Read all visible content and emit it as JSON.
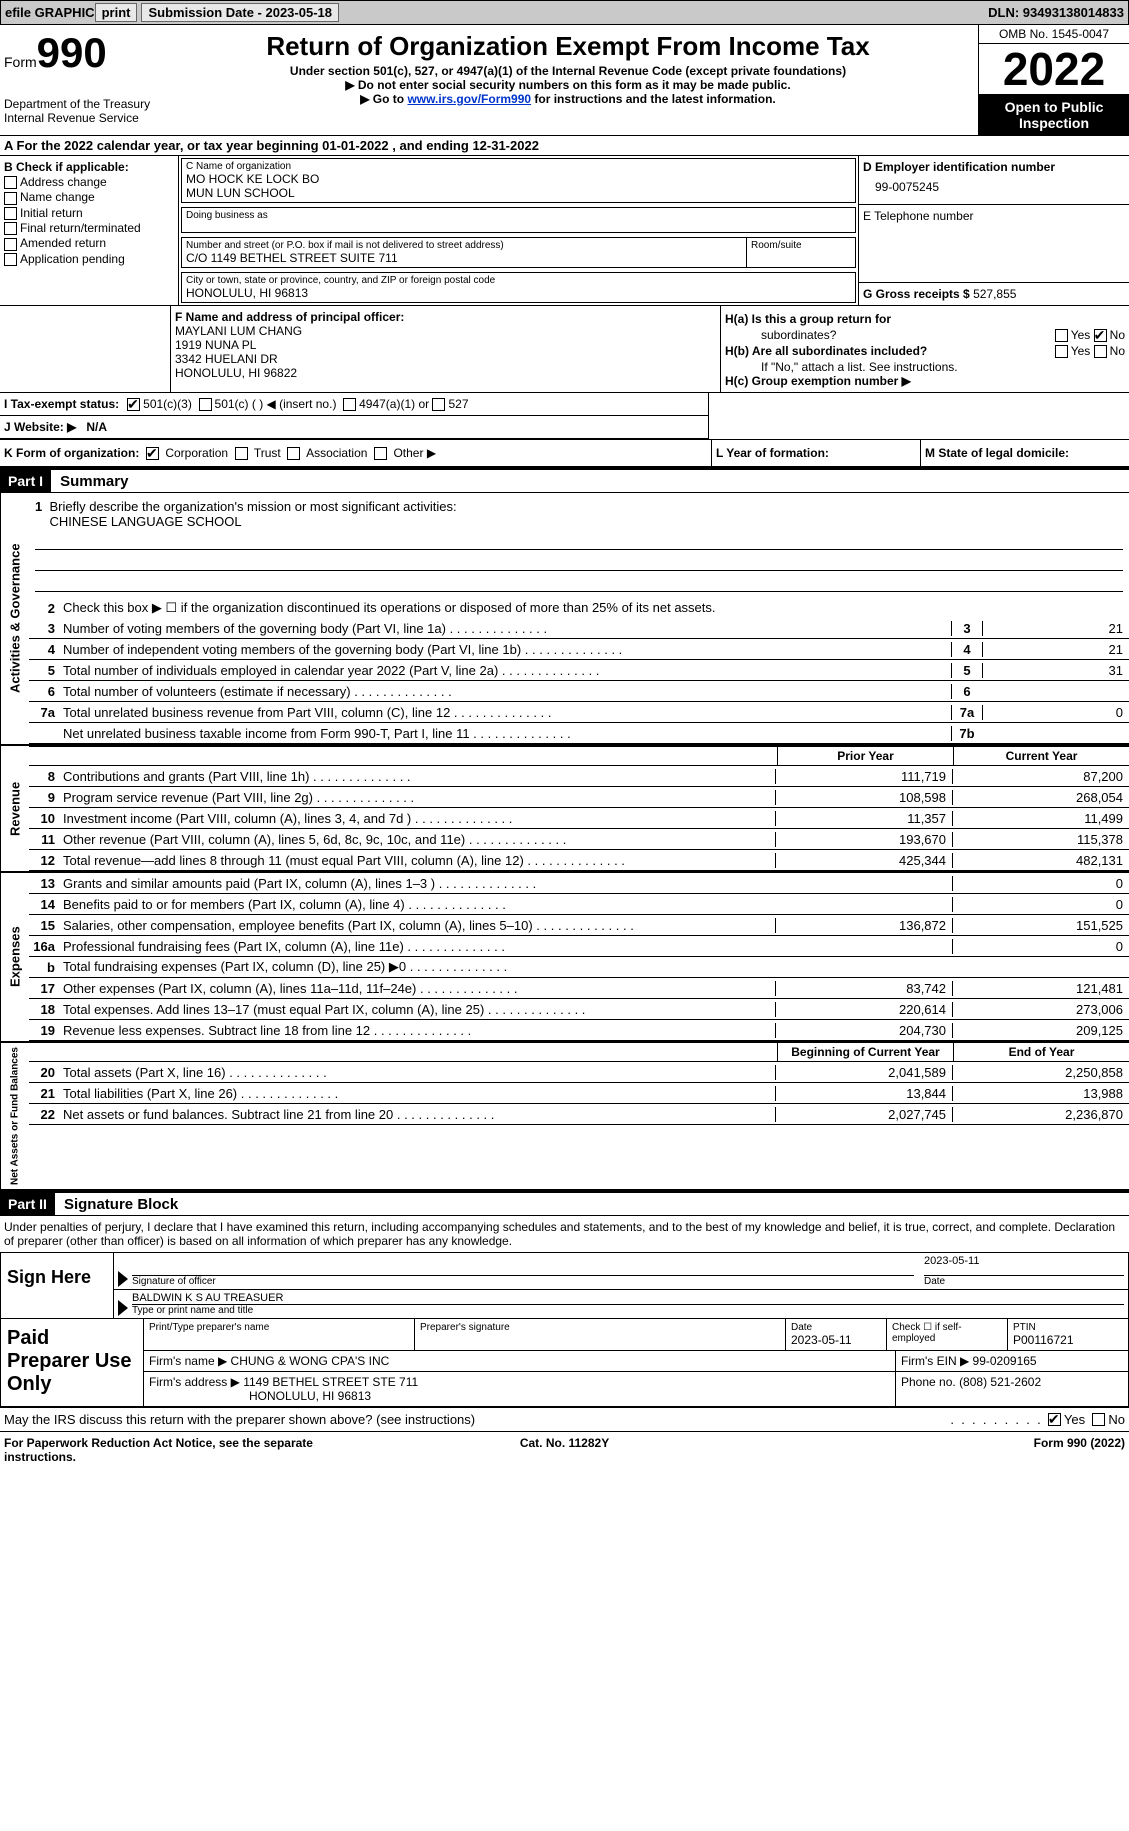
{
  "topbar": {
    "efile": "efile GRAPHIC",
    "print": "print",
    "submission_label": "Submission Date - 2023-05-18",
    "dln_label": "DLN: 93493138014833"
  },
  "header": {
    "form_label": "Form",
    "form_num": "990",
    "title": "Return of Organization Exempt From Income Tax",
    "subtitle": "Under section 501(c), 527, or 4947(a)(1) of the Internal Revenue Code (except private foundations)",
    "note1": "▶ Do not enter social security numbers on this form as it may be made public.",
    "note2_pre": "▶ Go to ",
    "note2_link": "www.irs.gov/Form990",
    "note2_post": " for instructions and the latest information.",
    "dept": "Department of the Treasury Internal Revenue Service",
    "omb": "OMB No. 1545-0047",
    "year": "2022",
    "inspection": "Open to Public Inspection"
  },
  "section_a": {
    "text_pre": "A For the 2022 calendar year, or tax year beginning ",
    "begin": "01-01-2022",
    "mid": " , and ending ",
    "end": "12-31-2022"
  },
  "block_b": {
    "title": "B Check if applicable:",
    "items": [
      "Address change",
      "Name change",
      "Initial return",
      "Final return/terminated",
      "Amended return",
      "Application pending"
    ]
  },
  "block_c": {
    "name_label": "C Name of organization",
    "name1": "MO HOCK KE LOCK BO",
    "name2": "MUN LUN SCHOOL",
    "dba_label": "Doing business as",
    "street_label": "Number and street (or P.O. box if mail is not delivered to street address)",
    "room_label": "Room/suite",
    "street": "C/O 1149 BETHEL STREET SUITE 711",
    "city_label": "City or town, state or province, country, and ZIP or foreign postal code",
    "city": "HONOLULU, HI  96813"
  },
  "block_d": {
    "ein_label": "D Employer identification number",
    "ein": "99-0075245",
    "phone_label": "E Telephone number",
    "gross_label": "G Gross receipts $",
    "gross": "527,855"
  },
  "block_f": {
    "label": "F Name and address of principal officer:",
    "name": "MAYLANI LUM CHANG",
    "addr1": "1919 NUNA PL",
    "addr2": "3342 HUELANI DR",
    "addr3": "HONOLULU, HI  96822"
  },
  "block_h": {
    "ha_label": "H(a)  Is this a group return for",
    "ha_sub": "subordinates?",
    "hb_label": "H(b)  Are all subordinates included?",
    "hb_note": "If \"No,\" attach a list. See instructions.",
    "hc_label": "H(c)  Group exemption number ▶",
    "yes": "Yes",
    "no": "No"
  },
  "tax_status": {
    "label": "I  Tax-exempt status:",
    "opt1": "501(c)(3)",
    "opt2": "501(c) (  ) ◀ (insert no.)",
    "opt3": "4947(a)(1) or",
    "opt4": "527"
  },
  "website": {
    "label": "J Website: ▶",
    "val": "N/A"
  },
  "klm": {
    "k_label": "K Form of organization:",
    "k_corp": "Corporation",
    "k_trust": "Trust",
    "k_assoc": "Association",
    "k_other": "Other ▶",
    "l_label": "L Year of formation:",
    "m_label": "M State of legal domicile:"
  },
  "part1_header": "Part I",
  "part1_title": "Summary",
  "mission": {
    "num": "1",
    "label": "Briefly describe the organization's mission or most significant activities:",
    "text": "CHINESE LANGUAGE SCHOOL"
  },
  "governance_label": "Activities & Governance",
  "revenue_label": "Revenue",
  "expenses_label": "Expenses",
  "netassets_label": "Net Assets or Fund Balances",
  "gov_lines": [
    {
      "num": "2",
      "desc": "Check this box ▶ ☐  if the organization discontinued its operations or disposed of more than 25% of its net assets."
    },
    {
      "num": "3",
      "desc": "Number of voting members of the governing body (Part VI, line 1a)",
      "cell": "3",
      "val": "21"
    },
    {
      "num": "4",
      "desc": "Number of independent voting members of the governing body (Part VI, line 1b)",
      "cell": "4",
      "val": "21"
    },
    {
      "num": "5",
      "desc": "Total number of individuals employed in calendar year 2022 (Part V, line 2a)",
      "cell": "5",
      "val": "31"
    },
    {
      "num": "6",
      "desc": "Total number of volunteers (estimate if necessary)",
      "cell": "6",
      "val": ""
    },
    {
      "num": "7a",
      "desc": "Total unrelated business revenue from Part VIII, column (C), line 12",
      "cell": "7a",
      "val": "0"
    },
    {
      "num": "",
      "desc": "Net unrelated business taxable income from Form 990-T, Part I, line 11",
      "cell": "7b",
      "val": ""
    }
  ],
  "col_prior": "Prior Year",
  "col_current": "Current Year",
  "rev_lines": [
    {
      "num": "8",
      "desc": "Contributions and grants (Part VIII, line 1h)",
      "prior": "111,719",
      "current": "87,200"
    },
    {
      "num": "9",
      "desc": "Program service revenue (Part VIII, line 2g)",
      "prior": "108,598",
      "current": "268,054"
    },
    {
      "num": "10",
      "desc": "Investment income (Part VIII, column (A), lines 3, 4, and 7d )",
      "prior": "11,357",
      "current": "11,499"
    },
    {
      "num": "11",
      "desc": "Other revenue (Part VIII, column (A), lines 5, 6d, 8c, 9c, 10c, and 11e)",
      "prior": "193,670",
      "current": "115,378"
    },
    {
      "num": "12",
      "desc": "Total revenue—add lines 8 through 11 (must equal Part VIII, column (A), line 12)",
      "prior": "425,344",
      "current": "482,131"
    }
  ],
  "exp_lines": [
    {
      "num": "13",
      "desc": "Grants and similar amounts paid (Part IX, column (A), lines 1–3 )",
      "prior": "",
      "current": "0"
    },
    {
      "num": "14",
      "desc": "Benefits paid to or for members (Part IX, column (A), line 4)",
      "prior": "",
      "current": "0"
    },
    {
      "num": "15",
      "desc": "Salaries, other compensation, employee benefits (Part IX, column (A), lines 5–10)",
      "prior": "136,872",
      "current": "151,525"
    },
    {
      "num": "16a",
      "desc": "Professional fundraising fees (Part IX, column (A), line 11e)",
      "prior": "",
      "current": "0"
    },
    {
      "num": "b",
      "desc": "Total fundraising expenses (Part IX, column (D), line 25) ▶0",
      "prior": "SHADED",
      "current": "SHADED"
    },
    {
      "num": "17",
      "desc": "Other expenses (Part IX, column (A), lines 11a–11d, 11f–24e)",
      "prior": "83,742",
      "current": "121,481"
    },
    {
      "num": "18",
      "desc": "Total expenses. Add lines 13–17 (must equal Part IX, column (A), line 25)",
      "prior": "220,614",
      "current": "273,006"
    },
    {
      "num": "19",
      "desc": "Revenue less expenses. Subtract line 18 from line 12",
      "prior": "204,730",
      "current": "209,125"
    }
  ],
  "col_begin": "Beginning of Current Year",
  "col_end": "End of Year",
  "net_lines": [
    {
      "num": "20",
      "desc": "Total assets (Part X, line 16)",
      "prior": "2,041,589",
      "current": "2,250,858"
    },
    {
      "num": "21",
      "desc": "Total liabilities (Part X, line 26)",
      "prior": "13,844",
      "current": "13,988"
    },
    {
      "num": "22",
      "desc": "Net assets or fund balances. Subtract line 21 from line 20",
      "prior": "2,027,745",
      "current": "2,236,870"
    }
  ],
  "part2_header": "Part II",
  "part2_title": "Signature Block",
  "penalty_text": "Under penalties of perjury, I declare that I have examined this return, including accompanying schedules and statements, and to the best of my knowledge and belief, it is true, correct, and complete. Declaration of preparer (other than officer) is based on all information of which preparer has any knowledge.",
  "sign": {
    "label": "Sign Here",
    "sig_officer": "Signature of officer",
    "date": "Date",
    "date_val": "2023-05-11",
    "name": "BALDWIN K S AU  TREASUER",
    "name_label": "Type or print name and title"
  },
  "prep": {
    "label": "Paid Preparer Use Only",
    "name_label": "Print/Type preparer's name",
    "sig_label": "Preparer's signature",
    "date_label": "Date",
    "date_val": "2023-05-11",
    "check_label": "Check ☐ if self-employed",
    "ptin_label": "PTIN",
    "ptin": "P00116721",
    "firm_name_label": "Firm's name    ▶",
    "firm_name": "CHUNG & WONG CPA'S INC",
    "firm_ein_label": "Firm's EIN ▶",
    "firm_ein": "99-0209165",
    "firm_addr_label": "Firm's address ▶",
    "firm_addr1": "1149 BETHEL STREET STE 711",
    "firm_addr2": "HONOLULU, HI  96813",
    "phone_label": "Phone no.",
    "phone": "(808) 521-2602"
  },
  "discuss": {
    "text": "May the IRS discuss this return with the preparer shown above? (see instructions)",
    "yes": "Yes",
    "no": "No"
  },
  "footer": {
    "left": "For Paperwork Reduction Act Notice, see the separate instructions.",
    "mid": "Cat. No. 11282Y",
    "right": "Form 990 (2022)"
  }
}
